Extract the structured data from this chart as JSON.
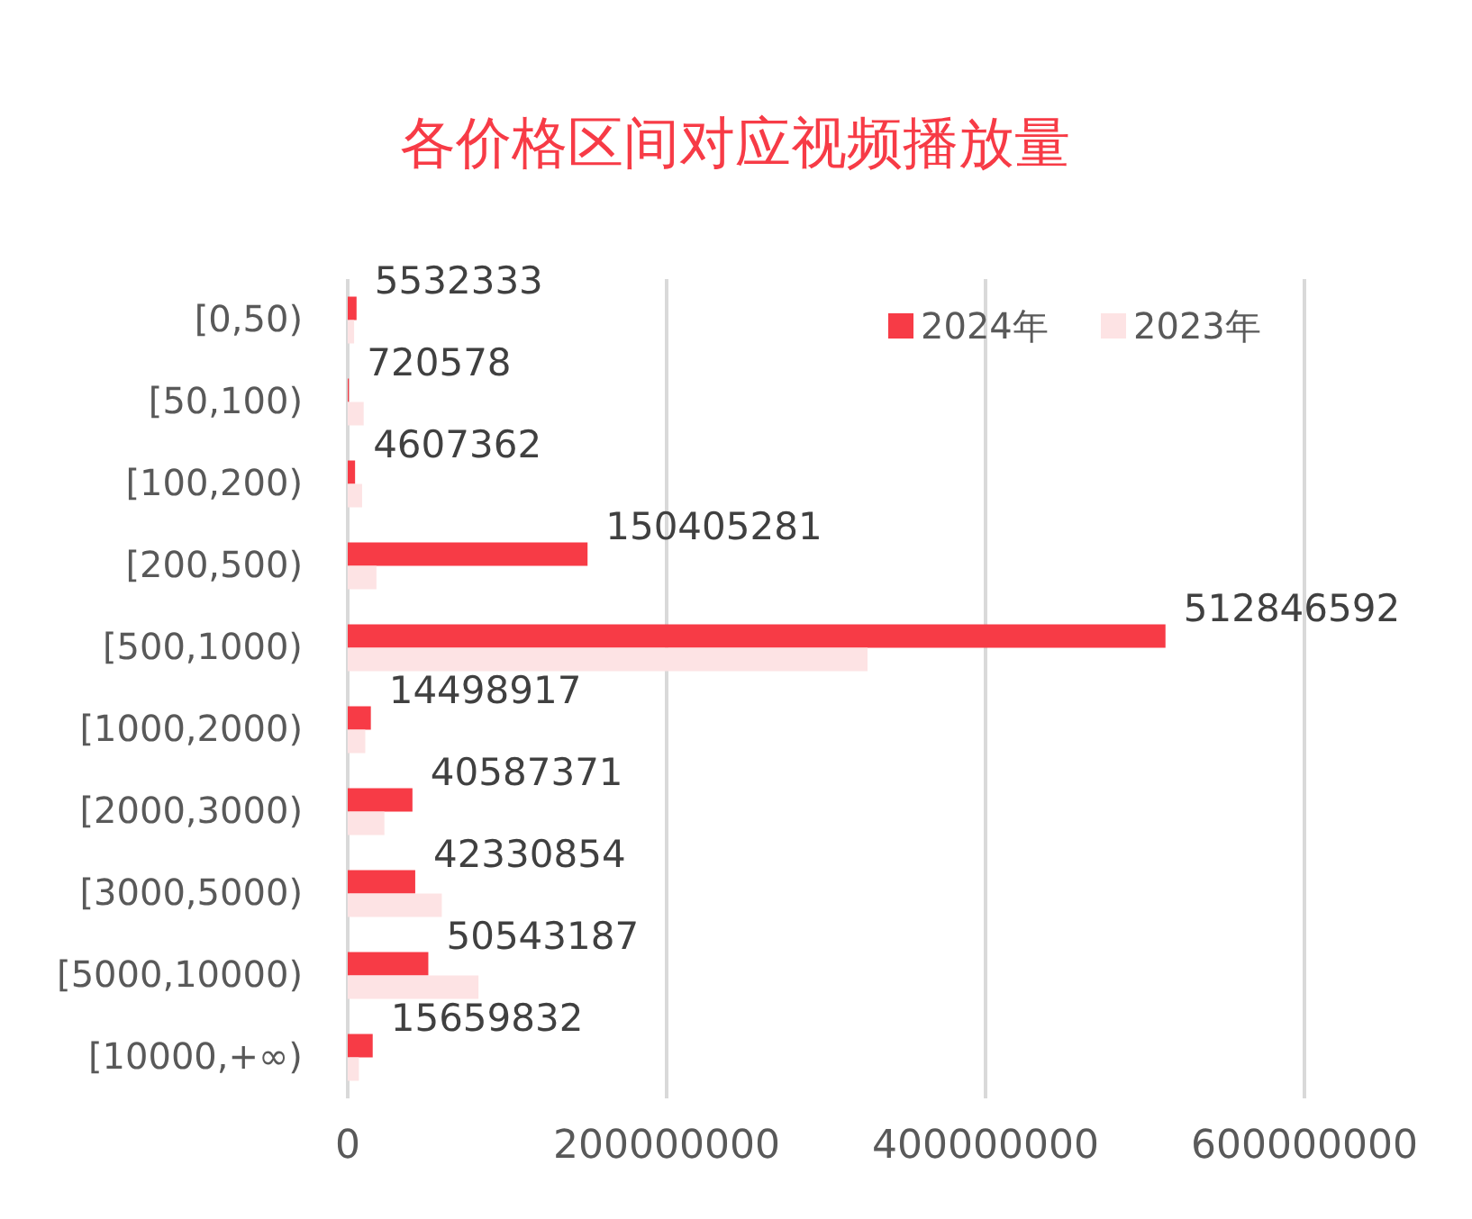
{
  "chart_data": {
    "type": "bar",
    "orientation": "horizontal",
    "title": "各价格区间对应视频播放量",
    "categories": [
      "[0,50)",
      "[50,100)",
      "[100,200)",
      "[200,500)",
      "[500,1000)",
      "[1000,2000)",
      "[2000,3000)",
      "[3000,5000)",
      "[5000,10000)",
      "[10000,+∞)"
    ],
    "series": [
      {
        "name": "2024年",
        "color": "#f73b46",
        "values": [
          5532333,
          720578,
          4607362,
          150405281,
          512846592,
          14498917,
          40587371,
          42330854,
          50543187,
          15659832
        ],
        "value_labels": [
          "5532333",
          "720578",
          "4607362",
          "150405281",
          "512846592",
          "14498917",
          "40587371",
          "42330854",
          "50543187",
          "15659832"
        ]
      },
      {
        "name": "2023年",
        "color": "#fde3e4",
        "values": [
          4000000,
          10000000,
          9000000,
          18000000,
          326000000,
          11000000,
          23000000,
          59000000,
          82000000,
          7000000
        ]
      }
    ],
    "xlim": [
      0,
      600000000
    ],
    "xticks": [
      0,
      200000000,
      400000000,
      600000000
    ],
    "grid": "x",
    "legend": "top right"
  }
}
